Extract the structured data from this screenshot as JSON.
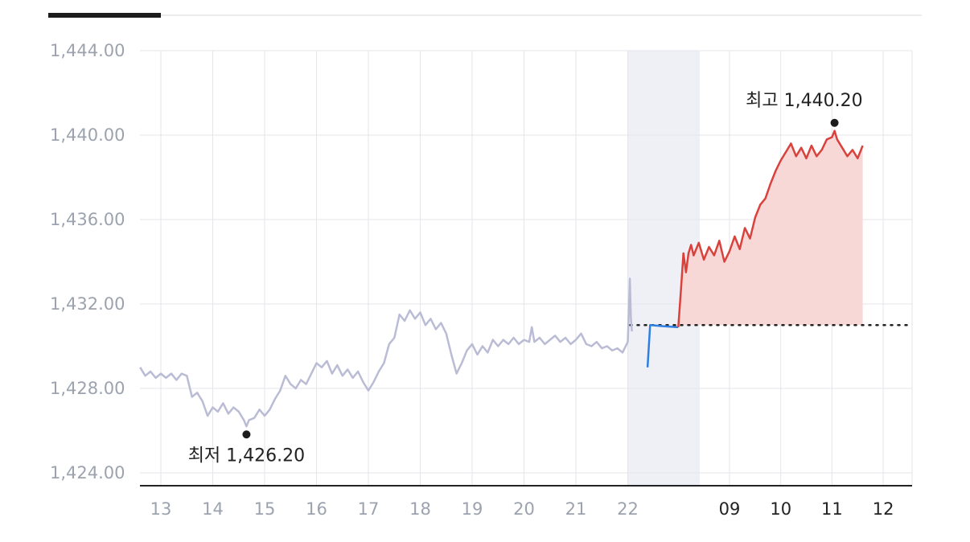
{
  "tabs": {
    "active_index": 0
  },
  "chart_data": {
    "type": "line",
    "title": "",
    "xlabel": "",
    "ylabel": "",
    "ylim": [
      1424.0,
      1444.0
    ],
    "yticks": [
      "1,424.00",
      "1,428.00",
      "1,432.00",
      "1,436.00",
      "1,440.00",
      "1,444.00"
    ],
    "ytick_values": [
      1424,
      1428,
      1432,
      1436,
      1440,
      1444
    ],
    "grid": true,
    "legend": "none",
    "xticks_previous": [
      "13",
      "14",
      "15",
      "16",
      "17",
      "18",
      "19",
      "20",
      "21",
      "22"
    ],
    "xticks_today": [
      "09",
      "10",
      "11",
      "12"
    ],
    "reference_value": 1431.0,
    "low_label": "최저 1,426.20",
    "low_value": 1426.2,
    "high_label": "최고 1,440.20",
    "high_value": 1440.2,
    "colors": {
      "previous": "#b9bcd4",
      "pre_market": "#2f7fe0",
      "today": "#d9423c",
      "today_fill": "#f8d7d7",
      "band": "#eef0f6",
      "grid": "#e4e6ea",
      "axis": "#222222"
    },
    "series": [
      {
        "period": "previous",
        "points": [
          [
            12.6,
            1429.0
          ],
          [
            12.7,
            1428.6
          ],
          [
            12.8,
            1428.8
          ],
          [
            12.9,
            1428.5
          ],
          [
            13.0,
            1428.7
          ],
          [
            13.1,
            1428.5
          ],
          [
            13.2,
            1428.7
          ],
          [
            13.3,
            1428.4
          ],
          [
            13.4,
            1428.7
          ],
          [
            13.5,
            1428.6
          ],
          [
            13.6,
            1427.6
          ],
          [
            13.7,
            1427.8
          ],
          [
            13.8,
            1427.4
          ],
          [
            13.9,
            1426.7
          ],
          [
            14.0,
            1427.1
          ],
          [
            14.1,
            1426.9
          ],
          [
            14.2,
            1427.3
          ],
          [
            14.3,
            1426.8
          ],
          [
            14.4,
            1427.1
          ],
          [
            14.5,
            1426.9
          ],
          [
            14.6,
            1426.5
          ],
          [
            14.65,
            1426.2
          ],
          [
            14.7,
            1426.5
          ],
          [
            14.8,
            1426.6
          ],
          [
            14.9,
            1427.0
          ],
          [
            15.0,
            1426.7
          ],
          [
            15.1,
            1427.0
          ],
          [
            15.2,
            1427.5
          ],
          [
            15.3,
            1427.9
          ],
          [
            15.4,
            1428.6
          ],
          [
            15.5,
            1428.2
          ],
          [
            15.6,
            1428.0
          ],
          [
            15.7,
            1428.4
          ],
          [
            15.8,
            1428.2
          ],
          [
            15.9,
            1428.7
          ],
          [
            16.0,
            1429.2
          ],
          [
            16.1,
            1429.0
          ],
          [
            16.2,
            1429.3
          ],
          [
            16.3,
            1428.7
          ],
          [
            16.4,
            1429.1
          ],
          [
            16.5,
            1428.6
          ],
          [
            16.6,
            1428.9
          ],
          [
            16.7,
            1428.5
          ],
          [
            16.8,
            1428.8
          ],
          [
            16.9,
            1428.3
          ],
          [
            17.0,
            1427.9
          ],
          [
            17.1,
            1428.3
          ],
          [
            17.2,
            1428.8
          ],
          [
            17.3,
            1429.2
          ],
          [
            17.4,
            1430.1
          ],
          [
            17.5,
            1430.4
          ],
          [
            17.6,
            1431.5
          ],
          [
            17.7,
            1431.2
          ],
          [
            17.8,
            1431.7
          ],
          [
            17.9,
            1431.3
          ],
          [
            18.0,
            1431.6
          ],
          [
            18.1,
            1431.0
          ],
          [
            18.2,
            1431.3
          ],
          [
            18.3,
            1430.8
          ],
          [
            18.4,
            1431.1
          ],
          [
            18.5,
            1430.6
          ],
          [
            18.6,
            1429.6
          ],
          [
            18.7,
            1428.7
          ],
          [
            18.8,
            1429.2
          ],
          [
            18.9,
            1429.8
          ],
          [
            19.0,
            1430.1
          ],
          [
            19.1,
            1429.6
          ],
          [
            19.2,
            1430.0
          ],
          [
            19.3,
            1429.7
          ],
          [
            19.4,
            1430.3
          ],
          [
            19.5,
            1430.0
          ],
          [
            19.6,
            1430.3
          ],
          [
            19.7,
            1430.1
          ],
          [
            19.8,
            1430.4
          ],
          [
            19.9,
            1430.1
          ],
          [
            20.0,
            1430.3
          ],
          [
            20.1,
            1430.2
          ],
          [
            20.15,
            1430.9
          ],
          [
            20.2,
            1430.2
          ],
          [
            20.3,
            1430.4
          ],
          [
            20.4,
            1430.1
          ],
          [
            20.5,
            1430.3
          ],
          [
            20.6,
            1430.5
          ],
          [
            20.7,
            1430.2
          ],
          [
            20.8,
            1430.4
          ],
          [
            20.9,
            1430.1
          ],
          [
            21.0,
            1430.3
          ],
          [
            21.1,
            1430.6
          ],
          [
            21.2,
            1430.1
          ],
          [
            21.3,
            1430.0
          ],
          [
            21.4,
            1430.2
          ],
          [
            21.5,
            1429.9
          ],
          [
            21.6,
            1430.0
          ],
          [
            21.7,
            1429.8
          ],
          [
            21.8,
            1429.9
          ],
          [
            21.9,
            1429.7
          ],
          [
            22.0,
            1430.2
          ],
          [
            22.02,
            1431.6
          ],
          [
            22.04,
            1433.2
          ],
          [
            22.06,
            1431.3
          ],
          [
            22.08,
            1430.7
          ]
        ]
      },
      {
        "period": "pre_market",
        "points": [
          [
            -1.6,
            1429.0
          ],
          [
            -1.55,
            1431.0
          ],
          [
            -1.3,
            1430.95
          ],
          [
            -1.0,
            1430.9
          ]
        ]
      },
      {
        "period": "today",
        "points": [
          [
            -1.0,
            1430.9
          ],
          [
            -0.95,
            1432.6
          ],
          [
            -0.9,
            1434.4
          ],
          [
            -0.85,
            1433.5
          ],
          [
            -0.8,
            1434.4
          ],
          [
            -0.75,
            1434.8
          ],
          [
            -0.7,
            1434.3
          ],
          [
            -0.6,
            1434.9
          ],
          [
            -0.5,
            1434.1
          ],
          [
            -0.4,
            1434.7
          ],
          [
            -0.3,
            1434.3
          ],
          [
            -0.2,
            1435.0
          ],
          [
            -0.1,
            1434.0
          ],
          [
            0.0,
            1434.5
          ],
          [
            0.1,
            1435.2
          ],
          [
            0.2,
            1434.6
          ],
          [
            0.3,
            1435.6
          ],
          [
            0.4,
            1435.1
          ],
          [
            0.5,
            1436.1
          ],
          [
            0.6,
            1436.7
          ],
          [
            0.7,
            1437.0
          ],
          [
            0.8,
            1437.7
          ],
          [
            0.9,
            1438.3
          ],
          [
            1.0,
            1438.8
          ],
          [
            1.1,
            1439.2
          ],
          [
            1.2,
            1439.6
          ],
          [
            1.3,
            1439.0
          ],
          [
            1.4,
            1439.4
          ],
          [
            1.5,
            1438.9
          ],
          [
            1.6,
            1439.5
          ],
          [
            1.7,
            1439.0
          ],
          [
            1.8,
            1439.3
          ],
          [
            1.9,
            1439.8
          ],
          [
            2.0,
            1439.9
          ],
          [
            2.05,
            1440.2
          ],
          [
            2.1,
            1439.8
          ],
          [
            2.2,
            1439.4
          ],
          [
            2.3,
            1439.0
          ],
          [
            2.4,
            1439.3
          ],
          [
            2.5,
            1438.9
          ],
          [
            2.6,
            1439.5
          ]
        ]
      }
    ]
  }
}
